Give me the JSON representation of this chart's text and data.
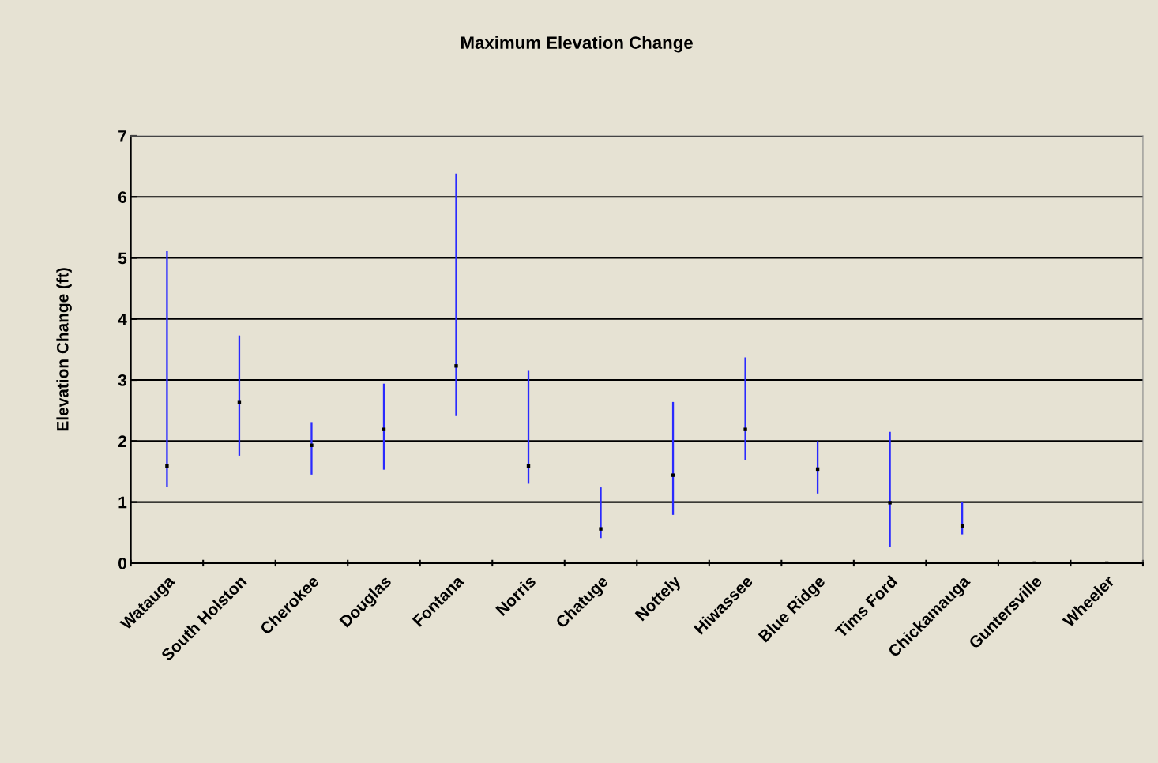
{
  "chart_data": {
    "type": "bar",
    "title": "Maximum Elevation Change",
    "ylabel": "Elevation Change (ft)",
    "categories": [
      "Watauga",
      "South Holston",
      "Cherokee",
      "Douglas",
      "Fontana",
      "Norris",
      "Chatuge",
      "Nottely",
      "Hiwassee",
      "Blue Ridge",
      "Tims Ford",
      "Chickamauga",
      "Guntersville",
      "Wheeler"
    ],
    "series": [
      {
        "base": [
          1.24,
          1.76,
          1.45,
          1.53,
          2.41,
          1.3,
          0.41,
          0.79,
          1.69,
          1.14,
          0.26,
          0.47,
          null,
          null
        ],
        "color": "#2a2aff",
        "values": [
          3.87,
          1.97,
          0.86,
          1.41,
          3.97,
          1.85,
          0.83,
          1.85,
          1.68,
          0.86,
          1.89,
          0.53,
          null,
          null
        ]
      },
      {
        "type": "scatter",
        "color": "#000000",
        "marker": "square",
        "x": [
          "Watauga",
          "South Holston",
          "Cherokee",
          "Douglas",
          "Fontana",
          "Norris",
          "Chatuge",
          "Nottely",
          "Hiwassee",
          "Blue Ridge",
          "Tims Ford",
          "Chickamauga",
          "Guntersville",
          "Wheeler"
        ],
        "values": [
          1.59,
          2.63,
          1.93,
          2.19,
          3.23,
          1.59,
          0.56,
          1.44,
          2.19,
          1.54,
          0.99,
          0.61,
          0,
          0
        ]
      }
    ],
    "ylim": [
      0,
      7
    ],
    "yticks": [
      0,
      1,
      2,
      3,
      4,
      5,
      6,
      7
    ],
    "grid": "y",
    "legend": false
  }
}
